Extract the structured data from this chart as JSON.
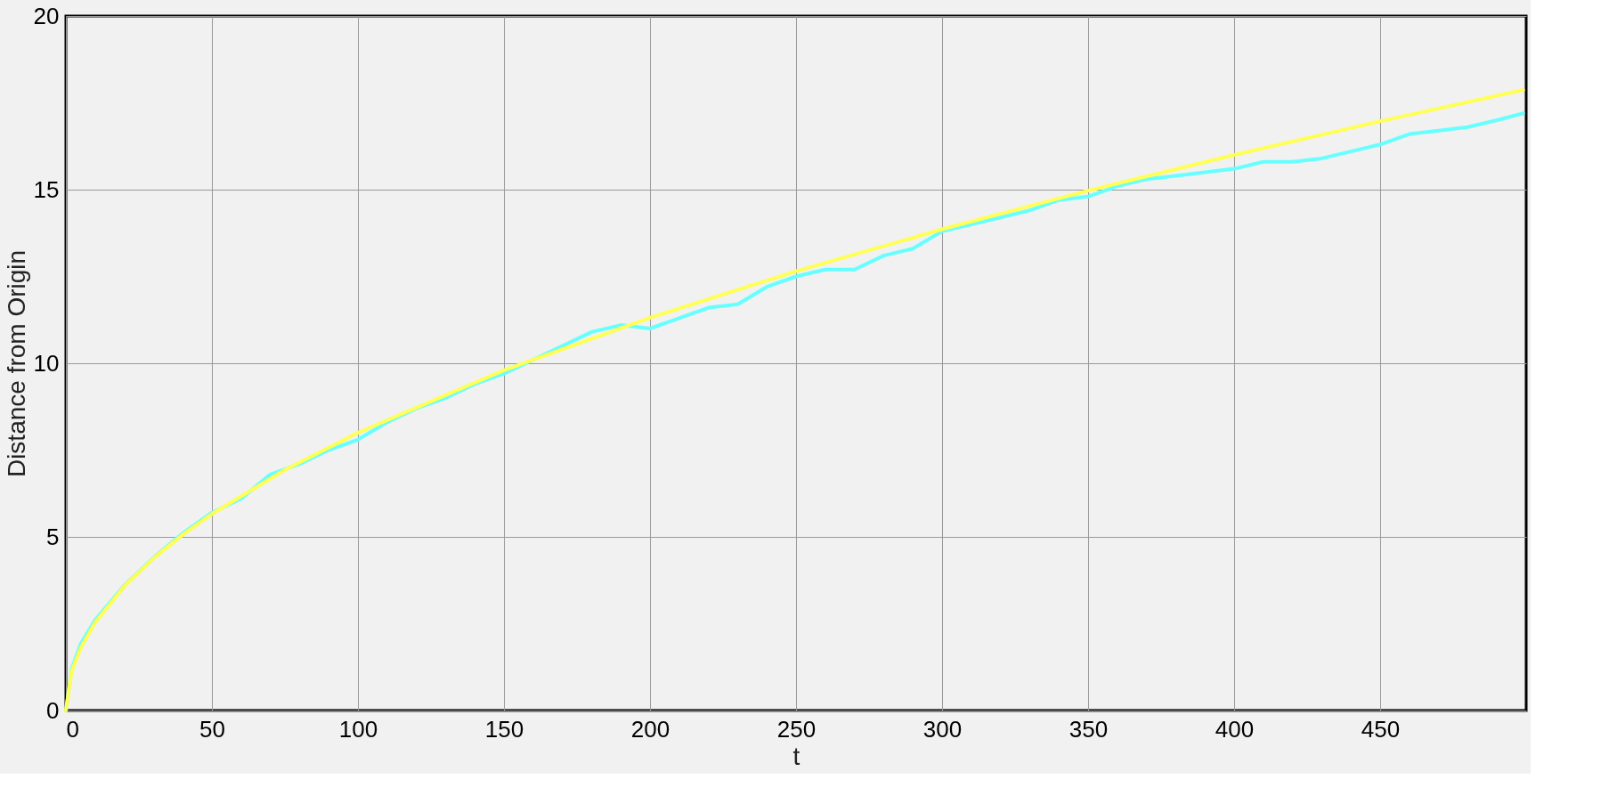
{
  "chart_data": {
    "type": "line",
    "xlabel": "t",
    "ylabel": "Distance from Origin",
    "xlim": [
      0,
      500
    ],
    "xticks": [
      0,
      50,
      100,
      150,
      200,
      250,
      300,
      350,
      400,
      450
    ],
    "ylim": [
      0,
      20
    ],
    "yticks": [
      0,
      5,
      10,
      15,
      20
    ],
    "grid": true,
    "legend": false,
    "series": [
      {
        "color": "#66ffff",
        "x": [
          0,
          2,
          5,
          10,
          20,
          30,
          40,
          50,
          60,
          70,
          80,
          90,
          100,
          110,
          120,
          130,
          140,
          150,
          160,
          170,
          180,
          190,
          200,
          210,
          220,
          230,
          240,
          250,
          260,
          270,
          280,
          290,
          300,
          310,
          320,
          330,
          340,
          350,
          360,
          370,
          380,
          390,
          400,
          410,
          420,
          430,
          440,
          450,
          460,
          470,
          480,
          490,
          499
        ],
        "values": [
          0,
          1.2,
          1.9,
          2.6,
          3.6,
          4.4,
          5.1,
          5.7,
          6.1,
          6.8,
          7.1,
          7.5,
          7.8,
          8.3,
          8.7,
          9.0,
          9.4,
          9.7,
          10.1,
          10.5,
          10.9,
          11.1,
          11.0,
          11.3,
          11.6,
          11.7,
          12.2,
          12.5,
          12.7,
          12.7,
          13.1,
          13.3,
          13.8,
          14.0,
          14.2,
          14.4,
          14.7,
          14.8,
          15.1,
          15.3,
          15.4,
          15.5,
          15.6,
          15.8,
          15.8,
          15.9,
          16.1,
          16.3,
          16.6,
          16.7,
          16.8,
          17.0,
          17.2
        ]
      },
      {
        "color": "#ffff55",
        "x": [
          0,
          2,
          5,
          10,
          20,
          30,
          40,
          50,
          75,
          100,
          150,
          200,
          250,
          300,
          350,
          400,
          450,
          499
        ],
        "values": [
          0,
          1.13,
          1.79,
          2.53,
          3.58,
          4.38,
          5.06,
          5.66,
          6.93,
          8.0,
          9.8,
          11.31,
          12.65,
          13.86,
          14.97,
          16.0,
          16.97,
          17.87
        ]
      }
    ]
  }
}
